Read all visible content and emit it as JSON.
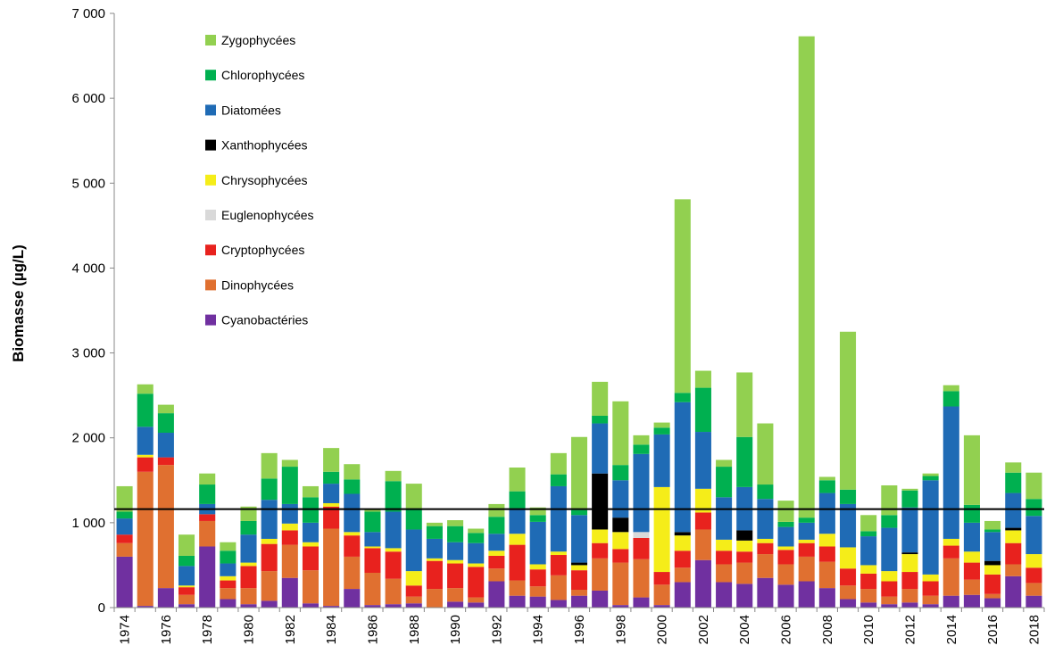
{
  "chart_data": {
    "type": "bar",
    "stacked": true,
    "title": "",
    "xlabel": "",
    "ylabel": "Biomasse (µg/L)",
    "ylim": [
      0,
      7000
    ],
    "yticks": [
      0,
      1000,
      2000,
      3000,
      4000,
      5000,
      6000,
      7000
    ],
    "ytick_labels": [
      "0",
      "1 000",
      "2 000",
      "3 000",
      "4 000",
      "5 000",
      "6 000",
      "7 000"
    ],
    "categories": [
      "1974",
      "1975",
      "1976",
      "1977",
      "1978",
      "1979",
      "1980",
      "1981",
      "1982",
      "1983",
      "1984",
      "1985",
      "1986",
      "1987",
      "1988",
      "1989",
      "1990",
      "1991",
      "1992",
      "1993",
      "1994",
      "1995",
      "1996",
      "1997",
      "1998",
      "1999",
      "2000",
      "2001",
      "2002",
      "2003",
      "2004",
      "2005",
      "2006",
      "2007",
      "2008",
      "2009",
      "2010",
      "2011",
      "2012",
      "2013",
      "2014",
      "2015",
      "2016",
      "2017",
      "2018"
    ],
    "xtick_labels": [
      "1974",
      "1976",
      "1978",
      "1980",
      "1982",
      "1984",
      "1986",
      "1988",
      "1990",
      "1992",
      "1994",
      "1996",
      "1998",
      "2000",
      "2002",
      "2004",
      "2006",
      "2008",
      "2010",
      "2012",
      "2014",
      "2016",
      "2018"
    ],
    "reference_line": 1160,
    "legend_position": "top-left",
    "series": [
      {
        "name": "Cyanobactéries",
        "color": "#7030a0",
        "values": [
          600,
          20,
          230,
          40,
          720,
          100,
          40,
          80,
          350,
          50,
          20,
          220,
          30,
          40,
          50,
          0,
          70,
          60,
          310,
          140,
          130,
          90,
          140,
          200,
          30,
          120,
          30,
          300,
          560,
          300,
          280,
          350,
          270,
          310,
          230,
          100,
          60,
          40,
          60,
          40,
          140,
          150,
          110,
          370,
          140
        ]
      },
      {
        "name": "Dinophycées",
        "color": "#e07030",
        "values": [
          160,
          1580,
          1450,
          110,
          300,
          130,
          190,
          350,
          390,
          390,
          910,
          380,
          380,
          300,
          80,
          220,
          160,
          60,
          150,
          180,
          120,
          290,
          70,
          380,
          500,
          450,
          240,
          170,
          360,
          210,
          250,
          280,
          240,
          290,
          310,
          160,
          160,
          90,
          160,
          100,
          440,
          180,
          50,
          140,
          150
        ]
      },
      {
        "name": "Cryptophycées",
        "color": "#e8221e",
        "values": [
          100,
          170,
          90,
          90,
          80,
          90,
          260,
          320,
          170,
          280,
          260,
          250,
          290,
          320,
          130,
          330,
          290,
          360,
          150,
          420,
          200,
          240,
          230,
          180,
          160,
          250,
          150,
          200,
          200,
          160,
          130,
          130,
          170,
          160,
          180,
          200,
          180,
          180,
          200,
          170,
          150,
          200,
          230,
          250,
          180
        ]
      },
      {
        "name": "Euglenophycées",
        "color": "#d9d9d9",
        "values": [
          0,
          0,
          0,
          0,
          0,
          0,
          0,
          0,
          0,
          0,
          0,
          0,
          0,
          0,
          0,
          0,
          0,
          0,
          0,
          0,
          0,
          0,
          0,
          0,
          0,
          70,
          0,
          0,
          0,
          0,
          0,
          0,
          0,
          0,
          0,
          0,
          0,
          0,
          0,
          0,
          0,
          0,
          0,
          0,
          0
        ]
      },
      {
        "name": "Chrysophycées",
        "color": "#f5ed19",
        "values": [
          0,
          30,
          0,
          20,
          0,
          50,
          40,
          60,
          80,
          50,
          40,
          40,
          20,
          40,
          170,
          30,
          40,
          40,
          60,
          130,
          60,
          40,
          60,
          160,
          200,
          0,
          1000,
          180,
          280,
          130,
          130,
          50,
          40,
          40,
          150,
          250,
          100,
          120,
          210,
          80,
          80,
          130,
          110,
          150,
          160
        ]
      },
      {
        "name": "Xanthophycées",
        "color": "#000000",
        "values": [
          0,
          0,
          0,
          0,
          0,
          0,
          0,
          0,
          0,
          0,
          0,
          0,
          0,
          0,
          0,
          0,
          0,
          0,
          0,
          0,
          0,
          0,
          30,
          660,
          170,
          0,
          0,
          40,
          0,
          0,
          120,
          0,
          0,
          0,
          0,
          0,
          0,
          0,
          20,
          0,
          0,
          0,
          50,
          30,
          0
        ]
      },
      {
        "name": "Diatomées",
        "color": "#1f6bb5",
        "values": [
          190,
          330,
          290,
          230,
          120,
          150,
          330,
          460,
          230,
          230,
          230,
          450,
          170,
          430,
          490,
          230,
          210,
          240,
          200,
          300,
          500,
          770,
          560,
          590,
          440,
          920,
          620,
          1530,
          670,
          500,
          510,
          470,
          230,
          200,
          480,
          510,
          340,
          510,
          530,
          1110,
          1560,
          340,
          340,
          410,
          450
        ]
      },
      {
        "name": "Chlorophycées",
        "color": "#00b050",
        "values": [
          80,
          390,
          230,
          120,
          230,
          150,
          160,
          250,
          440,
          300,
          140,
          170,
          240,
          360,
          250,
          150,
          190,
          120,
          200,
          200,
          80,
          140,
          60,
          90,
          180,
          110,
          80,
          110,
          520,
          360,
          590,
          170,
          60,
          60,
          150,
          170,
          60,
          150,
          200,
          50,
          180,
          210,
          30,
          240,
          200
        ]
      },
      {
        "name": "Zygophycées",
        "color": "#92d050",
        "values": [
          300,
          110,
          100,
          250,
          130,
          100,
          170,
          300,
          80,
          130,
          280,
          180,
          30,
          120,
          290,
          40,
          70,
          50,
          150,
          280,
          90,
          250,
          860,
          400,
          750,
          110,
          60,
          2280,
          200,
          80,
          760,
          720,
          250,
          5670,
          40,
          1860,
          190,
          350,
          20,
          30,
          70,
          820,
          100,
          120,
          310
        ]
      }
    ]
  }
}
